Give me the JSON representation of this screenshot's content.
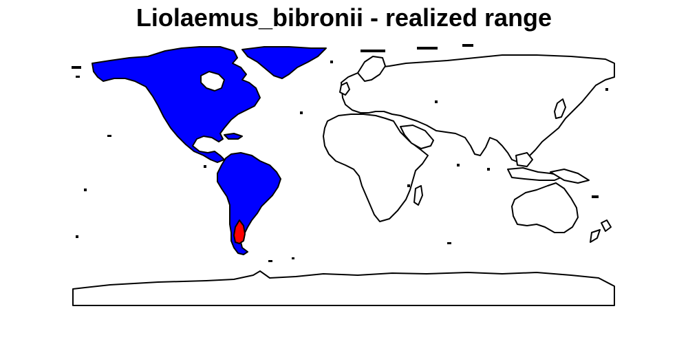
{
  "title": "Liolaemus_bibronii - realized range",
  "colors": {
    "americas_fill": "#0000ff",
    "range_fill": "#ff0000",
    "land_fill": "#ffffff",
    "outline": "#000000",
    "background": "#ffffff"
  }
}
